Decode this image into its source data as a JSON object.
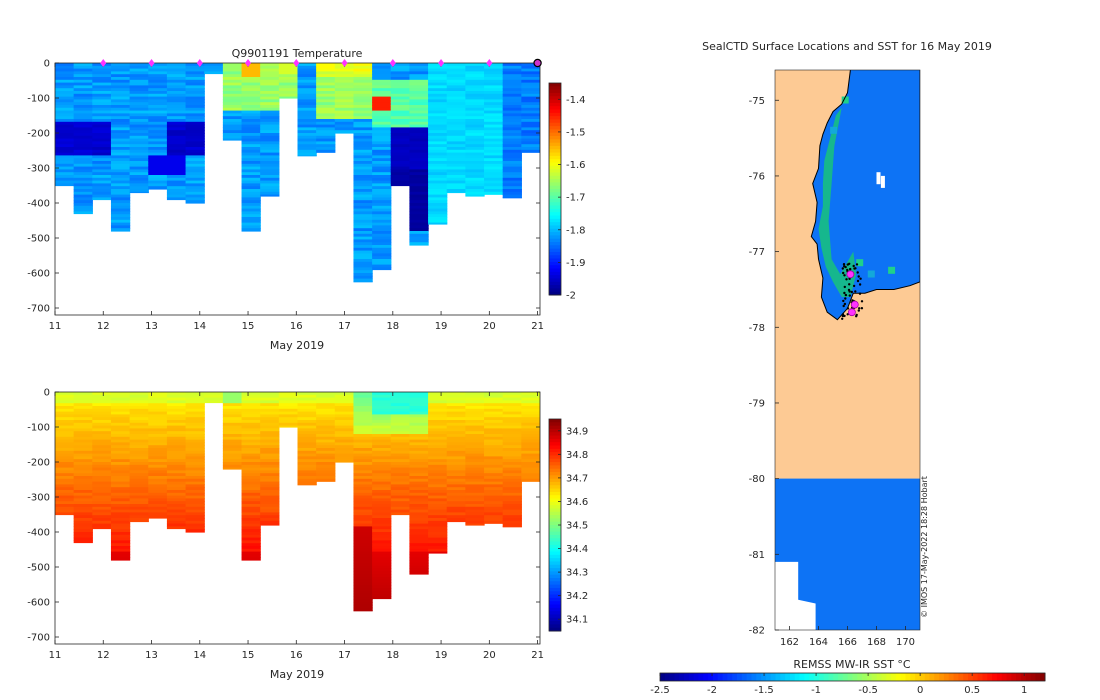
{
  "chart_data": [
    {
      "type": "heatmap",
      "title": "Q9901191  Temperature",
      "xlabel": "May 2019",
      "ylabel": "",
      "xlim": [
        11,
        21.05
      ],
      "ylim": [
        -720,
        0
      ],
      "xticks": [
        "11",
        "12",
        "13",
        "14",
        "15",
        "16",
        "17",
        "18",
        "19",
        "20",
        "21"
      ],
      "yticks": [
        "0",
        "-100",
        "-200",
        "-300",
        "-400",
        "-500",
        "-600",
        "-700"
      ],
      "colorbar": {
        "min": -2,
        "max": -1.35,
        "ticks": [
          "-1.4",
          "-1.5",
          "-1.6",
          "-1.7",
          "-1.8",
          "-1.9",
          "-2"
        ]
      },
      "profile_dates": [
        12,
        13,
        14,
        15,
        16,
        17,
        18,
        19,
        20,
        21
      ],
      "profile_depths": [
        -350,
        -430,
        -390,
        -480,
        -370,
        -360,
        -390,
        -400,
        -30,
        -220,
        -480,
        -380,
        -100,
        -265,
        -255,
        -200,
        -625,
        -590,
        -350,
        -520,
        -460,
        -370,
        -380,
        -375,
        -385,
        -255
      ]
    },
    {
      "type": "heatmap",
      "title": "",
      "xlabel": "May 2019",
      "ylabel": "",
      "xlim": [
        11,
        21.05
      ],
      "ylim": [
        -720,
        0
      ],
      "xticks": [
        "11",
        "12",
        "13",
        "14",
        "15",
        "16",
        "17",
        "18",
        "19",
        "20",
        "21"
      ],
      "yticks": [
        "0",
        "-100",
        "-200",
        "-300",
        "-400",
        "-500",
        "-600",
        "-700"
      ],
      "colorbar": {
        "min": 34.05,
        "max": 34.95,
        "ticks": [
          "34.9",
          "34.8",
          "34.7",
          "34.6",
          "34.5",
          "34.4",
          "34.3",
          "34.2",
          "34.1"
        ]
      }
    },
    {
      "type": "heatmap",
      "title": "SealCTD Surface Locations and SST for 16 May 2019",
      "xlabel": "REMSS MW-IR SST °C",
      "ylabel": "",
      "xlim": [
        161,
        171
      ],
      "ylim": [
        -82,
        -74.6
      ],
      "xticks": [
        "162",
        "164",
        "166",
        "168",
        "170"
      ],
      "yticks": [
        "-75",
        "-76",
        "-77",
        "-78",
        "-79",
        "-80",
        "-81",
        "-82"
      ],
      "colorbar": {
        "min": -2.5,
        "max": 1.2,
        "ticks": [
          "-2.5",
          "-2",
          "-1.5",
          "-1",
          "-0.5",
          "0",
          "0.5",
          "1"
        ]
      },
      "seal_locations": [
        [
          166.2,
          -77.3
        ],
        [
          166.5,
          -77.7
        ],
        [
          166.3,
          -77.8
        ]
      ]
    }
  ],
  "watermark": "© IMOS 17-May-2022 18:28 Hobart"
}
